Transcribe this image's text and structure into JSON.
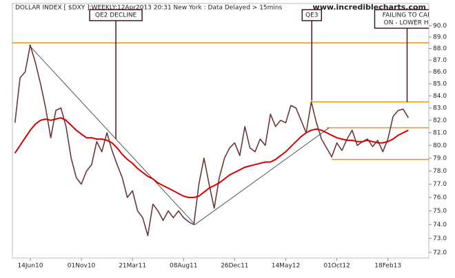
{
  "chart_data": {
    "type": "line",
    "title": "DOLLAR INDEX [ $DXY ]:WEEKLY:12Apr2013 20:31 New York : Data Delayed > 15mins",
    "watermark": "www.incrediblecharts.com",
    "log_y": true,
    "ylim": [
      71.6,
      92.0
    ],
    "yticks": [
      {
        "value": 72,
        "label": "72.0"
      },
      {
        "value": 73,
        "label": "73.0"
      },
      {
        "value": 74,
        "label": "74.0"
      },
      {
        "value": 75,
        "label": "75.0"
      },
      {
        "value": 76,
        "label": "76.0"
      },
      {
        "value": 77,
        "label": "77.0"
      },
      {
        "value": 78,
        "label": "78.0"
      },
      {
        "value": 79,
        "label": "79.0"
      },
      {
        "value": 80,
        "label": "80.0"
      },
      {
        "value": 81,
        "label": "81.0"
      },
      {
        "value": 82,
        "label": "82.0"
      },
      {
        "value": 83,
        "label": "83.0"
      },
      {
        "value": 84,
        "label": "84.0"
      },
      {
        "value": 85,
        "label": "85.0"
      },
      {
        "value": 86,
        "label": "86.0"
      },
      {
        "value": 87,
        "label": "87.0"
      },
      {
        "value": 88,
        "label": "88.0"
      },
      {
        "value": 89,
        "label": "89.0"
      },
      {
        "value": 90,
        "label": "90.0"
      }
    ],
    "xlim": [
      -1,
      162
    ],
    "xticks": [
      {
        "value": 6,
        "label": "14Jun10"
      },
      {
        "value": 26,
        "label": "01Nov10"
      },
      {
        "value": 46,
        "label": "21Mar11"
      },
      {
        "value": 66,
        "label": "08Aug11"
      },
      {
        "value": 86,
        "label": "26Dec11"
      },
      {
        "value": 106,
        "label": "14May12"
      },
      {
        "value": 126,
        "label": "01Oct12"
      },
      {
        "value": 146,
        "label": "18Feb13"
      }
    ],
    "x": [
      0,
      2,
      4,
      6,
      8,
      10,
      12,
      14,
      16,
      18,
      20,
      22,
      24,
      26,
      28,
      30,
      32,
      34,
      36,
      38,
      40,
      42,
      44,
      46,
      48,
      50,
      52,
      54,
      56,
      58,
      60,
      62,
      64,
      66,
      68,
      70,
      72,
      74,
      76,
      78,
      80,
      82,
      84,
      86,
      88,
      90,
      92,
      94,
      96,
      98,
      100,
      102,
      104,
      106,
      108,
      110,
      112,
      114,
      116,
      118,
      120,
      122,
      124,
      126,
      128,
      130,
      132,
      134,
      136,
      138,
      140,
      142,
      144,
      146,
      148,
      150,
      152,
      154
    ],
    "series": [
      {
        "color": "#6b3636",
        "values": [
          81.8,
          85.5,
          86.0,
          88.3,
          86.8,
          85.0,
          83.0,
          80.6,
          82.8,
          83.0,
          81.5,
          79.0,
          77.5,
          77.0,
          78.0,
          78.5,
          80.3,
          79.5,
          81.0,
          79.6,
          78.5,
          77.5,
          76.0,
          76.5,
          75.0,
          74.5,
          73.2,
          75.5,
          75.0,
          74.3,
          75.0,
          74.5,
          75.0,
          74.5,
          74.2,
          74.0,
          77.0,
          79.0,
          77.0,
          75.2,
          77.5,
          79.0,
          79.8,
          80.2,
          79.2,
          81.5,
          79.8,
          79.5,
          80.5,
          80.0,
          82.5,
          81.5,
          82.0,
          81.8,
          83.2,
          83.0,
          82.0,
          81.0,
          83.5,
          81.8,
          80.5,
          79.8,
          79.1,
          80.2,
          79.6,
          80.5,
          81.2,
          80.0,
          80.3,
          80.5,
          79.9,
          80.4,
          79.5,
          80.5,
          82.3,
          82.8,
          82.9,
          82.2
        ]
      },
      {
        "color": "#d40000",
        "values": [
          79.4,
          80.0,
          80.6,
          81.2,
          81.7,
          82.0,
          82.1,
          82.0,
          82.1,
          82.2,
          82.0,
          81.6,
          81.2,
          80.9,
          80.6,
          80.6,
          80.5,
          80.5,
          80.4,
          80.2,
          79.8,
          79.3,
          78.9,
          78.6,
          78.2,
          77.9,
          77.6,
          77.4,
          77.1,
          76.9,
          76.7,
          76.5,
          76.3,
          76.1,
          76.0,
          76.0,
          76.1,
          76.4,
          76.7,
          76.9,
          77.1,
          77.4,
          77.7,
          77.9,
          78.1,
          78.3,
          78.4,
          78.5,
          78.6,
          78.7,
          78.7,
          78.9,
          79.2,
          79.5,
          79.9,
          80.3,
          80.7,
          81.0,
          81.2,
          81.3,
          81.2,
          81.0,
          80.8,
          80.6,
          80.5,
          80.4,
          80.4,
          80.3,
          80.3,
          80.4,
          80.3,
          80.2,
          80.2,
          80.3,
          80.5,
          80.8,
          81.0,
          81.2
        ]
      }
    ],
    "hlines": [
      {
        "y": 88.5,
        "x_from": -1,
        "color": "#f0901e"
      },
      {
        "y": 83.5,
        "x_from": 116,
        "color": "#f0901e"
      },
      {
        "y": 81.4,
        "x_from": 122,
        "color": "#f0901e"
      },
      {
        "y": 78.9,
        "x_from": 124,
        "color": "#f0901e"
      }
    ],
    "trendlines": [
      {
        "x": [
          5.5,
          70.5
        ],
        "y": [
          88.3,
          74.0
        ],
        "color": "#555555"
      },
      {
        "x": [
          70.5,
          123
        ],
        "y": [
          74.0,
          81.4
        ],
        "color": "#555555"
      }
    ],
    "annotations": [
      {
        "lines": [
          "QE2 DECLINE"
        ],
        "x": 39.5,
        "y": 80.5
      },
      {
        "lines": [
          "QE3"
        ],
        "x": 116.2,
        "y": 83.6
      },
      {
        "lines": [
          "FAILING TO CAR",
          "ON - LOWER HI"
        ],
        "x": 153.5,
        "y": 83.5
      }
    ]
  }
}
